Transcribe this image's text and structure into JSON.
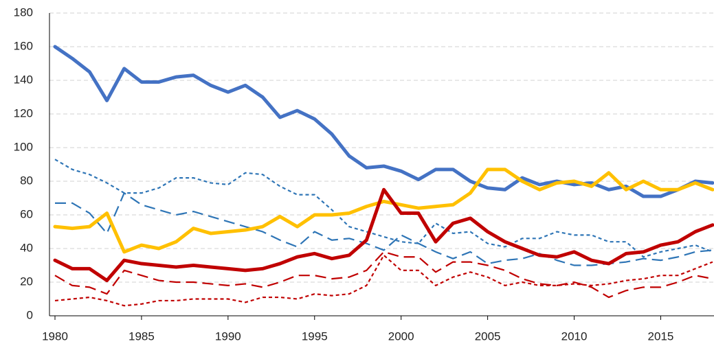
{
  "chart_data": {
    "type": "line",
    "x": [
      1980,
      1981,
      1982,
      1983,
      1984,
      1985,
      1986,
      1987,
      1988,
      1989,
      1990,
      1991,
      1992,
      1993,
      1994,
      1995,
      1996,
      1997,
      1998,
      1999,
      2000,
      2001,
      2002,
      2003,
      2004,
      2005,
      2006,
      2007,
      2008,
      2009,
      2010,
      2011,
      2012,
      2013,
      2014,
      2015,
      2016,
      2017,
      2018
    ],
    "xlim": [
      1980,
      2018
    ],
    "xticks": [
      1980,
      1985,
      1990,
      1995,
      2000,
      2005,
      2010,
      2015
    ],
    "ylim": [
      0,
      180
    ],
    "yticks": [
      0,
      20,
      40,
      60,
      80,
      100,
      120,
      140,
      160,
      180
    ],
    "grid": true,
    "series": [
      {
        "color": "#4472c4",
        "dash": "solid",
        "values": [
          160,
          153,
          145,
          128,
          147,
          139,
          139,
          142,
          143,
          137,
          133,
          137,
          130,
          118,
          122,
          117,
          108,
          95,
          88,
          89,
          86,
          81,
          87,
          87,
          80,
          76,
          75,
          82,
          78,
          80,
          78,
          79,
          75,
          77,
          71,
          71,
          75,
          80,
          79
        ]
      },
      {
        "color": "#ffc000",
        "dash": "solid",
        "values": [
          53,
          52,
          53,
          61,
          38,
          42,
          40,
          44,
          52,
          49,
          50,
          51,
          53,
          59,
          53,
          60,
          60,
          61,
          65,
          68,
          66,
          64,
          65,
          66,
          73,
          87,
          87,
          80,
          75,
          79,
          80,
          77,
          85,
          75,
          80,
          75,
          75,
          79,
          75
        ]
      },
      {
        "color": "#c00000",
        "dash": "solid",
        "values": [
          33,
          28,
          28,
          21,
          33,
          31,
          30,
          29,
          30,
          29,
          28,
          27,
          28,
          31,
          35,
          37,
          34,
          36,
          45,
          75,
          61,
          61,
          44,
          55,
          58,
          50,
          44,
          40,
          36,
          35,
          38,
          33,
          31,
          37,
          38,
          42,
          44,
          50,
          54
        ]
      },
      {
        "color": "#2e75b6",
        "dash": "dot",
        "values": [
          93,
          87,
          84,
          79,
          73,
          73,
          76,
          82,
          82,
          79,
          78,
          85,
          84,
          77,
          72,
          72,
          63,
          53,
          50,
          47,
          44,
          43,
          55,
          49,
          50,
          43,
          41,
          46,
          46,
          50,
          48,
          48,
          44,
          44,
          35,
          38,
          40,
          42,
          38
        ]
      },
      {
        "color": "#2e75b6",
        "dash": "dash",
        "values": [
          67,
          67,
          61,
          49,
          73,
          66,
          63,
          60,
          62,
          59,
          56,
          53,
          50,
          45,
          41,
          50,
          45,
          46,
          43,
          39,
          48,
          43,
          38,
          34,
          38,
          31,
          33,
          34,
          37,
          33,
          30,
          30,
          31,
          32,
          34,
          33,
          35,
          38,
          39
        ]
      },
      {
        "color": "#c00000",
        "dash": "dash",
        "values": [
          24,
          18,
          17,
          13,
          27,
          24,
          21,
          20,
          20,
          19,
          18,
          19,
          17,
          20,
          24,
          24,
          22,
          23,
          27,
          38,
          35,
          35,
          26,
          32,
          32,
          30,
          27,
          22,
          19,
          18,
          20,
          17,
          11,
          15,
          17,
          17,
          20,
          24,
          22
        ]
      },
      {
        "color": "#c00000",
        "dash": "dot",
        "values": [
          9,
          10,
          11,
          9,
          6,
          7,
          9,
          9,
          10,
          10,
          10,
          8,
          11,
          11,
          10,
          13,
          12,
          13,
          18,
          36,
          27,
          27,
          18,
          23,
          26,
          23,
          18,
          20,
          18,
          18,
          19,
          18,
          19,
          21,
          22,
          24,
          24,
          28,
          32
        ]
      }
    ]
  }
}
